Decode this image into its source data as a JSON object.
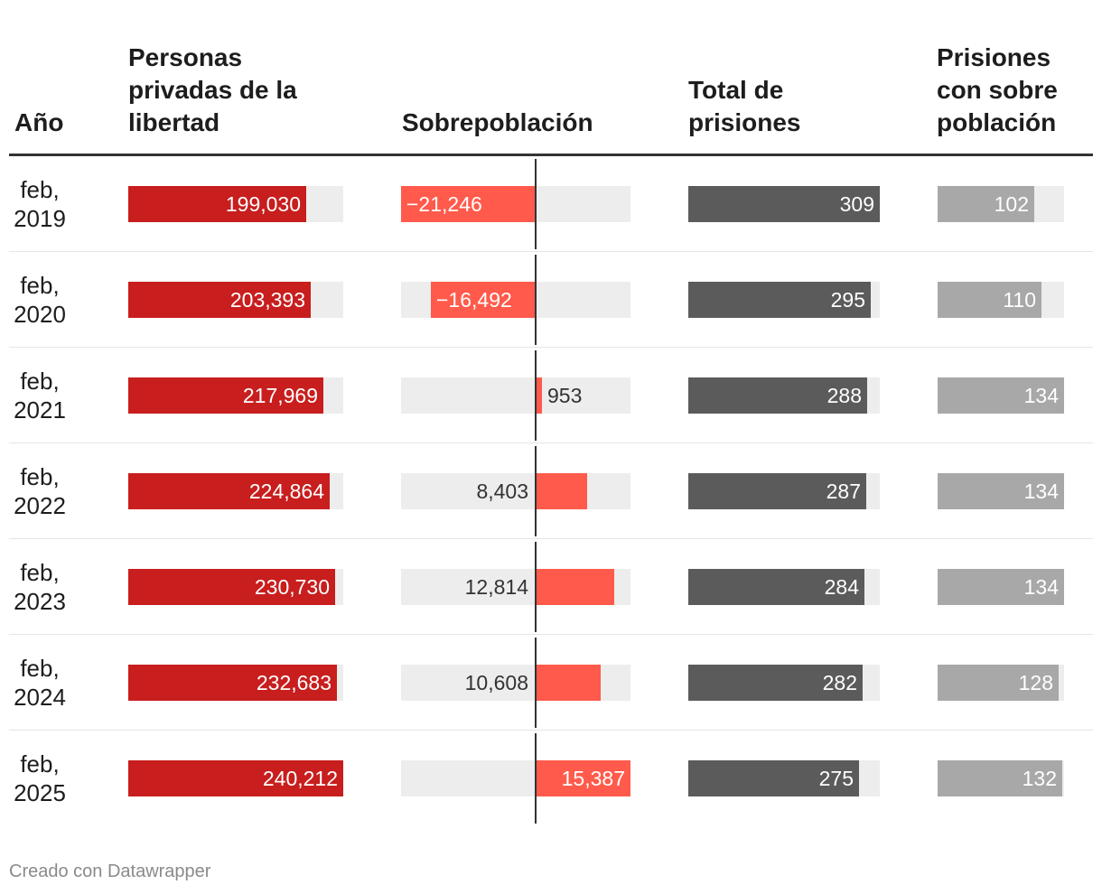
{
  "headers": {
    "year": "Año",
    "persons_lines": [
      "Personas",
      "privadas de la",
      "libertad"
    ],
    "over": "Sobrepoblación",
    "total_lines": [
      "Total de",
      "prisiones"
    ],
    "prisons_over_lines": [
      "Prisiones",
      "con sobre",
      "población"
    ]
  },
  "footer": "Creado con Datawrapper",
  "colors": {
    "persons": "#c81e1e",
    "over": "#ff5a4b",
    "total": "#5b5b5b",
    "prisons_over": "#a8a8a8",
    "track": "#ededed"
  },
  "chart_data": {
    "type": "table",
    "columns": [
      "Año",
      "Personas privadas de la libertad",
      "Sobrepoblación",
      "Total de prisiones",
      "Prisiones con sobre población"
    ],
    "rows": [
      {
        "year": [
          "feb,",
          "2019"
        ],
        "persons": 199030,
        "persons_label": "199,030",
        "over": -21246,
        "over_label": "−21,246",
        "total": 309,
        "total_label": "309",
        "prisons_over": 102,
        "prisons_over_label": "102"
      },
      {
        "year": [
          "feb,",
          "2020"
        ],
        "persons": 203393,
        "persons_label": "203,393",
        "over": -16492,
        "over_label": "−16,492",
        "total": 295,
        "total_label": "295",
        "prisons_over": 110,
        "prisons_over_label": "110"
      },
      {
        "year": [
          "feb,",
          "2021"
        ],
        "persons": 217969,
        "persons_label": "217,969",
        "over": 953,
        "over_label": "953",
        "total": 288,
        "total_label": "288",
        "prisons_over": 134,
        "prisons_over_label": "134"
      },
      {
        "year": [
          "feb,",
          "2022"
        ],
        "persons": 224864,
        "persons_label": "224,864",
        "over": 8403,
        "over_label": "8,403",
        "total": 287,
        "total_label": "287",
        "prisons_over": 134,
        "prisons_over_label": "134"
      },
      {
        "year": [
          "feb,",
          "2023"
        ],
        "persons": 230730,
        "persons_label": "230,730",
        "over": 12814,
        "over_label": "12,814",
        "total": 284,
        "total_label": "284",
        "prisons_over": 134,
        "prisons_over_label": "134"
      },
      {
        "year": [
          "feb,",
          "2024"
        ],
        "persons": 232683,
        "persons_label": "232,683",
        "over": 10608,
        "over_label": "10,608",
        "total": 282,
        "total_label": "282",
        "prisons_over": 128,
        "prisons_over_label": "128"
      },
      {
        "year": [
          "feb,",
          "2025"
        ],
        "persons": 240212,
        "persons_label": "240,212",
        "over": 15387,
        "over_label": "15,387",
        "total": 275,
        "total_label": "275",
        "prisons_over": 132,
        "prisons_over_label": "132"
      }
    ],
    "ranges": {
      "persons": [
        0,
        240212
      ],
      "over": [
        -21246,
        15387
      ],
      "total": [
        0,
        309
      ],
      "prisons_over": [
        0,
        134
      ]
    }
  }
}
